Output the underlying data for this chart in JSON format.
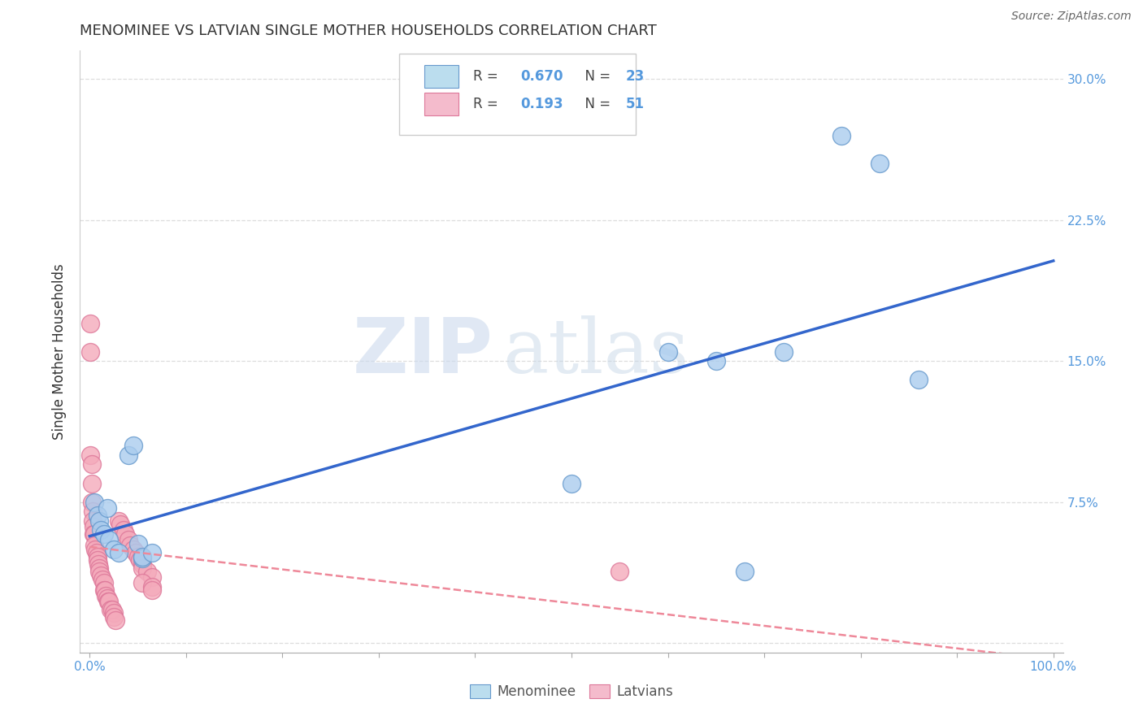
{
  "title": "MENOMINEE VS LATVIAN SINGLE MOTHER HOUSEHOLDS CORRELATION CHART",
  "source": "Source: ZipAtlas.com",
  "tick_color": "#5599dd",
  "ylabel": "Single Mother Households",
  "watermark_zip": "ZIP",
  "watermark_atlas": "atlas",
  "background_color": "#ffffff",
  "grid_color": "#dddddd",
  "menominee_color": "#aaccee",
  "latvian_color": "#f4aabb",
  "menominee_edge_color": "#6699cc",
  "latvian_edge_color": "#dd7799",
  "menominee_line_color": "#3366cc",
  "latvian_line_color": "#ee8899",
  "legend_box_color_men": "#bbddee",
  "legend_box_color_lat": "#f4bbcc",
  "R_men": "0.670",
  "N_men": "23",
  "R_lat": "0.193",
  "N_lat": "51",
  "x_ticks": [
    0.0,
    0.1,
    0.2,
    0.3,
    0.4,
    0.5,
    0.6,
    0.7,
    0.8,
    0.9,
    1.0
  ],
  "x_ticklabels": [
    "0.0%",
    "",
    "",
    "",
    "",
    "",
    "",
    "",
    "",
    "",
    "100.0%"
  ],
  "y_ticks": [
    0.0,
    0.075,
    0.15,
    0.225,
    0.3
  ],
  "y_right_ticklabels": [
    "",
    "7.5%",
    "15.0%",
    "22.5%",
    "30.0%"
  ],
  "menominee_x": [
    0.005,
    0.008,
    0.01,
    0.012,
    0.015,
    0.018,
    0.02,
    0.025,
    0.03,
    0.04,
    0.045,
    0.05,
    0.055,
    0.055,
    0.065,
    0.5,
    0.6,
    0.65,
    0.68,
    0.72,
    0.78,
    0.82,
    0.86
  ],
  "menominee_y": [
    0.075,
    0.068,
    0.065,
    0.06,
    0.058,
    0.072,
    0.055,
    0.05,
    0.048,
    0.1,
    0.105,
    0.053,
    0.045,
    0.046,
    0.048,
    0.085,
    0.155,
    0.15,
    0.038,
    0.155,
    0.27,
    0.255,
    0.14
  ],
  "latvian_x": [
    0.001,
    0.001,
    0.001,
    0.002,
    0.002,
    0.002,
    0.003,
    0.003,
    0.004,
    0.004,
    0.005,
    0.005,
    0.006,
    0.007,
    0.008,
    0.008,
    0.009,
    0.01,
    0.01,
    0.012,
    0.013,
    0.015,
    0.015,
    0.016,
    0.017,
    0.018,
    0.019,
    0.02,
    0.022,
    0.023,
    0.025,
    0.025,
    0.027,
    0.03,
    0.032,
    0.035,
    0.037,
    0.04,
    0.042,
    0.045,
    0.048,
    0.05,
    0.052,
    0.055,
    0.055,
    0.06,
    0.065,
    0.055,
    0.065,
    0.065,
    0.55
  ],
  "latvian_y": [
    0.17,
    0.155,
    0.1,
    0.095,
    0.085,
    0.075,
    0.07,
    0.065,
    0.062,
    0.058,
    0.058,
    0.052,
    0.05,
    0.048,
    0.046,
    0.044,
    0.042,
    0.04,
    0.038,
    0.036,
    0.034,
    0.032,
    0.028,
    0.028,
    0.025,
    0.024,
    0.022,
    0.022,
    0.018,
    0.018,
    0.016,
    0.014,
    0.012,
    0.065,
    0.063,
    0.06,
    0.058,
    0.055,
    0.052,
    0.05,
    0.048,
    0.046,
    0.044,
    0.042,
    0.04,
    0.038,
    0.035,
    0.032,
    0.03,
    0.028,
    0.038
  ]
}
